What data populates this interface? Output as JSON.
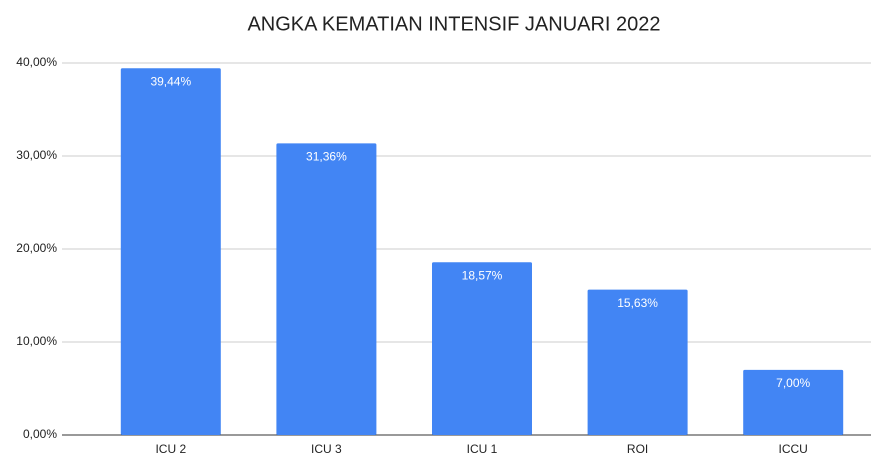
{
  "chart_data": {
    "type": "bar",
    "title": "ANGKA KEMATIAN INTENSIF JANUARI 2022",
    "categories": [
      "ICU 2",
      "ICU 3",
      "ICU 1",
      "ROI",
      "ICCU"
    ],
    "values": [
      39.44,
      31.36,
      18.57,
      15.63,
      7.0
    ],
    "value_labels": [
      "39,44%",
      "31,36%",
      "18,57%",
      "15,63%",
      "7,00%"
    ],
    "color": "#4285f4",
    "ylim": [
      0,
      40
    ],
    "yticks": [
      {
        "value": 0,
        "label": "0,00%"
      },
      {
        "value": 10,
        "label": "10,00%"
      },
      {
        "value": 20,
        "label": "20,00%"
      },
      {
        "value": 30,
        "label": "30,00%"
      },
      {
        "value": 40,
        "label": "40,00%"
      }
    ],
    "grid": true
  }
}
